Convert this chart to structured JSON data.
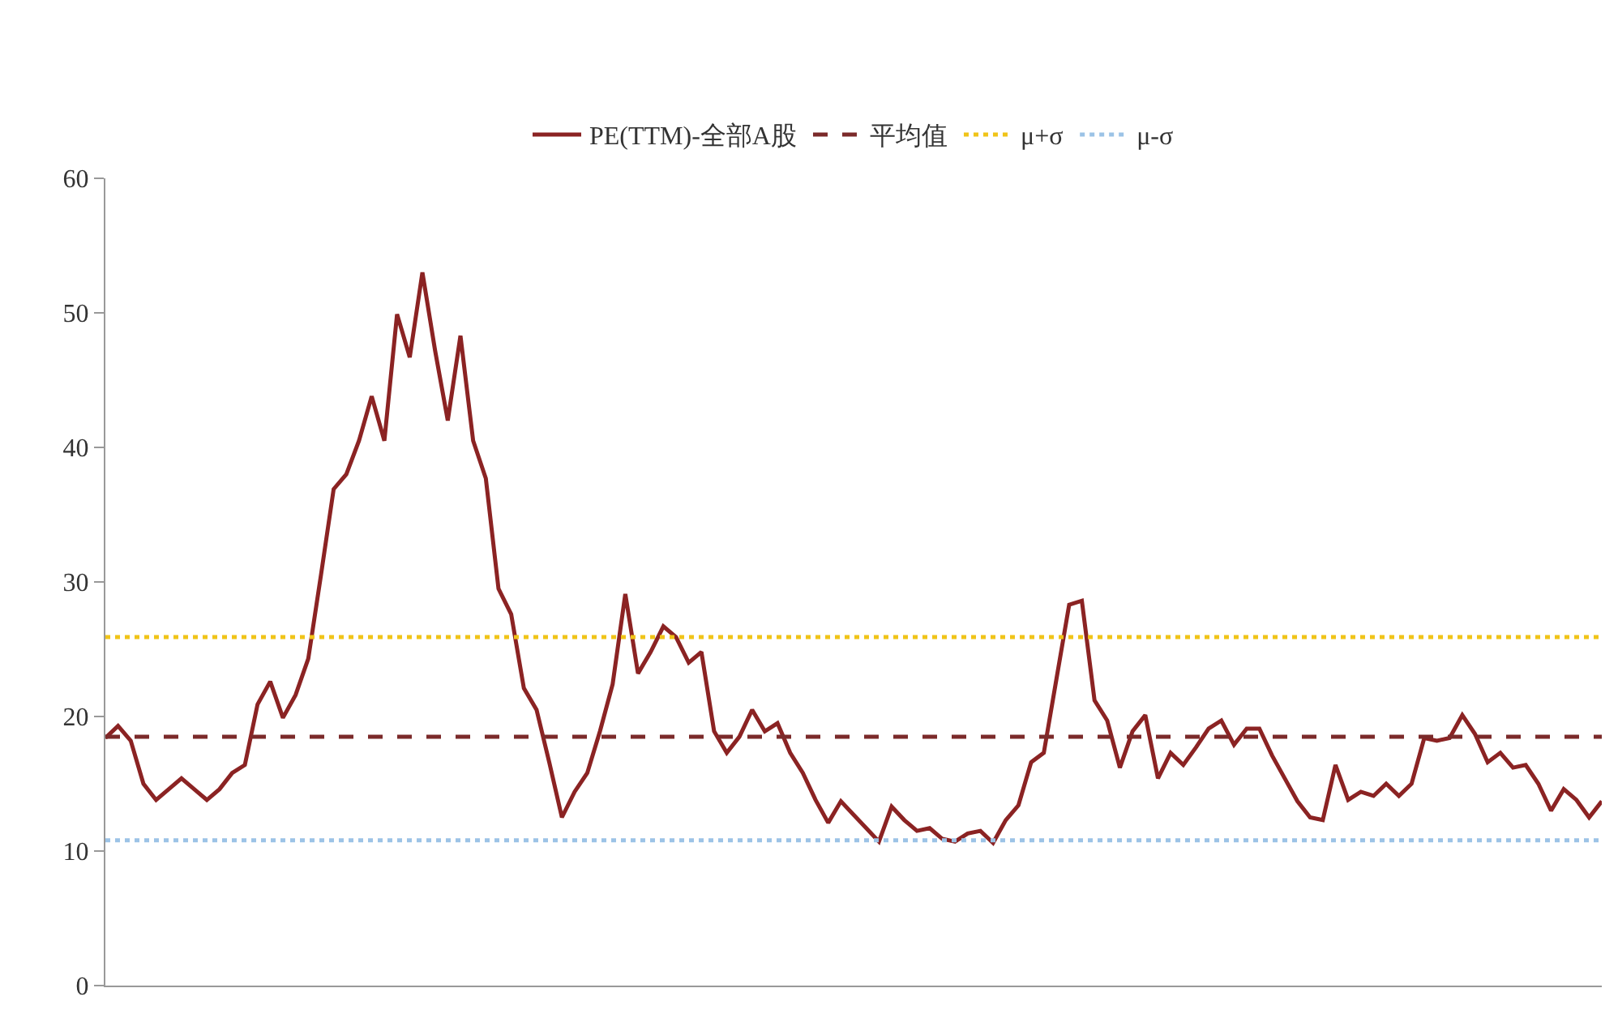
{
  "chart_data": {
    "type": "line",
    "categories": [
      null,
      null,
      null,
      null,
      null,
      null,
      null,
      null,
      null,
      null,
      null,
      null,
      null,
      null,
      null,
      null,
      null,
      null,
      null,
      null,
      null,
      null,
      null,
      null,
      null,
      null,
      null,
      null,
      null,
      null,
      null,
      null,
      null,
      null,
      null,
      null,
      null,
      null,
      null,
      null,
      null,
      null,
      null,
      null,
      null,
      null,
      null,
      null,
      null,
      null,
      null,
      null,
      null,
      null,
      null,
      null,
      null,
      null,
      null,
      null,
      null,
      null,
      null,
      null,
      null,
      null,
      null,
      null,
      null,
      null,
      null,
      null,
      null,
      null,
      null,
      null,
      null,
      null,
      null,
      null,
      null,
      null,
      null,
      null,
      null,
      null,
      null,
      null,
      null,
      null,
      null,
      null,
      null,
      null,
      null,
      null,
      null,
      null,
      null,
      null,
      null,
      null,
      null,
      null,
      null,
      null,
      null,
      null,
      null,
      null,
      null,
      null,
      null,
      null,
      null,
      null,
      null,
      null,
      null
    ],
    "series": [
      {
        "name": "PE(TTM)-全部A股",
        "color": "#8b2323",
        "values": [
          18.4,
          19.3,
          18.2,
          15,
          13.8,
          14.6,
          15.4,
          14.6,
          13.8,
          14.6,
          15.8,
          16.4,
          20.9,
          22.6,
          19.9,
          21.6,
          24.3,
          30.5,
          36.9,
          38,
          40.5,
          43.8,
          40.5,
          49.9,
          46.7,
          53,
          47.2,
          42,
          48.3,
          40.5,
          37.7,
          29.5,
          27.6,
          22.1,
          20.5,
          16.6,
          12.5,
          14.4,
          15.8,
          18.9,
          22.4,
          29.1,
          23.2,
          24.8,
          26.7,
          25.9,
          24,
          24.8,
          18.9,
          17.3,
          18.5,
          20.5,
          18.9,
          19.5,
          17.3,
          15.8,
          13.8,
          12.1,
          13.7,
          12.7,
          11.7,
          10.7,
          13.3,
          12.3,
          11.5,
          11.7,
          10.9,
          10.7,
          11.3,
          11.5,
          10.6,
          12.3,
          13.4,
          16.6,
          17.3,
          22.8,
          28.3,
          28.6,
          21.2,
          19.7,
          16.2,
          18.9,
          20.1,
          15.4,
          17.3,
          16.4,
          17.7,
          19.1,
          19.7,
          17.9,
          19.1,
          19.1,
          17.1,
          15.4,
          13.7,
          12.5,
          12.3,
          16.4,
          13.8,
          14.4,
          14.1,
          15,
          14.1,
          15,
          18.4,
          18.2,
          18.4,
          20.1,
          18.7,
          16.6,
          17.3,
          16.2,
          16.4,
          15,
          13,
          14.6,
          13.8,
          12.5,
          13.7
        ]
      }
    ],
    "ref_lines": [
      {
        "axis": "y",
        "value": 18.5,
        "label": "平均值",
        "color": "#7b2a2a",
        "line_style": "dashed"
      },
      {
        "axis": "y",
        "value": 25.9,
        "label": "μ+σ",
        "color": "#f0c419",
        "line_style": "dotted"
      },
      {
        "axis": "y",
        "value": 10.8,
        "label": "μ-σ",
        "color": "#9cc3e6",
        "line_style": "dotted"
      }
    ],
    "ylim": [
      0,
      60
    ],
    "yticks": [
      0,
      10,
      20,
      30,
      40,
      50,
      60
    ],
    "tick_labels": "y",
    "legend": "top",
    "line_style": "solid"
  }
}
